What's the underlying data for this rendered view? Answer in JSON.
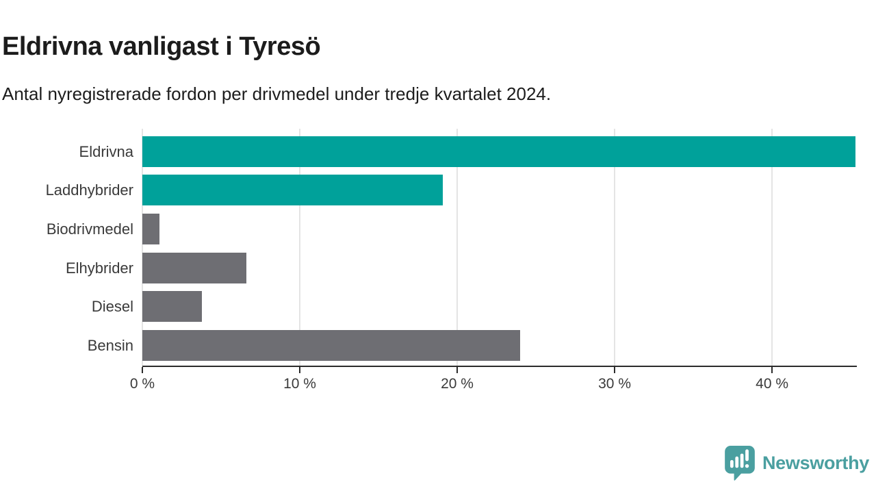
{
  "header": {
    "title": "Eldrivna vanligast i Tyresö",
    "subtitle": "Antal nyregistrerade fordon per drivmedel under tredje kvartalet 2024."
  },
  "chart_data": {
    "type": "bar",
    "orientation": "horizontal",
    "title": "Eldrivna vanligast i Tyresö",
    "subtitle": "Antal nyregistrerade fordon per drivmedel under tredje kvartalet 2024.",
    "categories": [
      "Eldrivna",
      "Laddhybrider",
      "Biodrivmedel",
      "Elhybrider",
      "Diesel",
      "Bensin"
    ],
    "values": [
      45.3,
      19.1,
      1.1,
      6.6,
      3.8,
      24.0
    ],
    "unit": "%",
    "xlim": [
      0,
      45.3
    ],
    "x_ticks": [
      0,
      10,
      20,
      30,
      40
    ],
    "x_tick_labels": [
      "0 %",
      "10 %",
      "20 %",
      "30 %",
      "40 %"
    ],
    "grid": "vertical-only",
    "legend": "none",
    "bar_colors": [
      "#00a19a",
      "#00a19a",
      "#6e6e73",
      "#6e6e73",
      "#6e6e73",
      "#6e6e73"
    ],
    "highlight_color": "#00a19a",
    "default_color": "#6e6e73"
  },
  "footer": {
    "brand": "Newsworthy",
    "brand_color": "#4a9fa0"
  }
}
